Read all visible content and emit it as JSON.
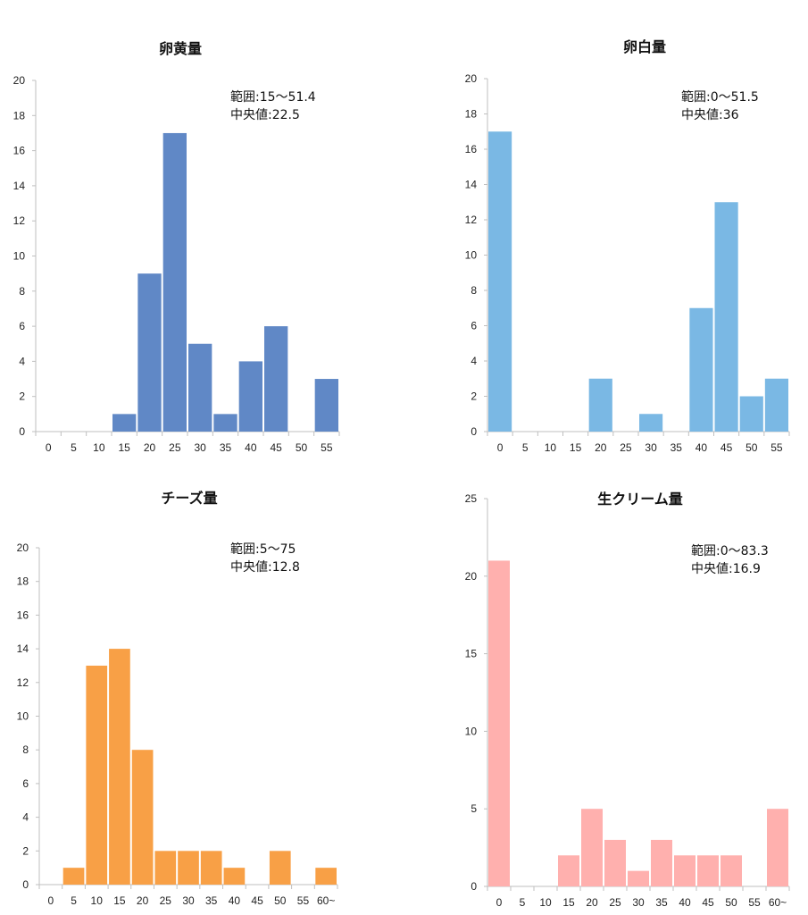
{
  "chart_data": [
    {
      "type": "bar",
      "title": "卵黄量",
      "color": "#6088C6",
      "categories": [
        "0",
        "5",
        "10",
        "15",
        "20",
        "25",
        "30",
        "35",
        "40",
        "45",
        "50",
        "55"
      ],
      "values": [
        0,
        0,
        0,
        1,
        9,
        17,
        5,
        1,
        4,
        6,
        0,
        3
      ],
      "ylim": [
        0,
        20
      ],
      "yticks": [
        "0",
        "2",
        "4",
        "6",
        "8",
        "10",
        "12",
        "14",
        "16",
        "18",
        "20"
      ],
      "annotations": [
        "範囲:15～51.4",
        "中央値:22.5"
      ],
      "xlabel": "",
      "ylabel": ""
    },
    {
      "type": "bar",
      "title": "卵白量",
      "color": "#7AB8E4",
      "categories": [
        "0",
        "5",
        "10",
        "15",
        "20",
        "25",
        "30",
        "35",
        "40",
        "45",
        "50",
        "55"
      ],
      "values": [
        17,
        0,
        0,
        0,
        3,
        0,
        1,
        0,
        7,
        13,
        2,
        3
      ],
      "ylim": [
        0,
        20
      ],
      "yticks": [
        "0",
        "2",
        "4",
        "6",
        "8",
        "10",
        "12",
        "14",
        "16",
        "18",
        "20"
      ],
      "annotations": [
        "範囲:0～51.5",
        "中央値:36"
      ],
      "xlabel": "",
      "ylabel": ""
    },
    {
      "type": "bar",
      "title": "チーズ量",
      "color": "#F8A046",
      "categories": [
        "0",
        "5",
        "10",
        "15",
        "20",
        "25",
        "30",
        "35",
        "40",
        "45",
        "50",
        "55",
        "60~"
      ],
      "values": [
        0,
        1,
        13,
        14,
        8,
        2,
        2,
        2,
        1,
        0,
        2,
        0,
        1
      ],
      "ylim": [
        0,
        20
      ],
      "yticks": [
        "0",
        "2",
        "4",
        "6",
        "8",
        "10",
        "12",
        "14",
        "16",
        "18",
        "20"
      ],
      "annotations": [
        "範囲:5～75",
        "中央値:12.8"
      ],
      "xlabel": "",
      "ylabel": ""
    },
    {
      "type": "bar",
      "title": "生クリーム量",
      "color": "#FFB0AE",
      "categories": [
        "0",
        "5",
        "10",
        "15",
        "20",
        "25",
        "30",
        "35",
        "40",
        "45",
        "50",
        "55",
        "60~"
      ],
      "values": [
        21,
        0,
        0,
        2,
        5,
        3,
        1,
        3,
        2,
        2,
        2,
        0,
        5
      ],
      "ylim": [
        0,
        25
      ],
      "yticks": [
        "0",
        "5",
        "10",
        "15",
        "20",
        "25"
      ],
      "annotations": [
        "範囲:0～83.3",
        "中央値:16.9"
      ],
      "xlabel": "",
      "ylabel": ""
    }
  ]
}
